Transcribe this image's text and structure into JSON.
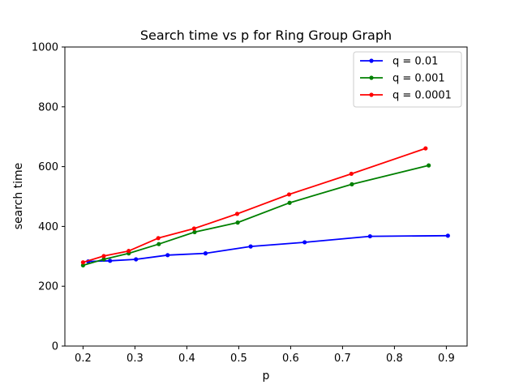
{
  "chart_data": {
    "type": "line",
    "title": "Search time vs p for Ring Group Graph",
    "xlabel": "p",
    "ylabel": "search time",
    "xlim": [
      0.165,
      0.94
    ],
    "ylim": [
      0,
      1000
    ],
    "xticks": [
      0.2,
      0.3,
      0.4,
      0.5,
      0.6,
      0.7,
      0.8,
      0.9
    ],
    "xtick_labels": [
      "0.2",
      "0.3",
      "0.4",
      "0.5",
      "0.6",
      "0.7",
      "0.8",
      "0.9"
    ],
    "yticks": [
      0,
      200,
      400,
      600,
      800,
      1000
    ],
    "ytick_labels": [
      "0",
      "200",
      "400",
      "600",
      "800",
      "1000"
    ],
    "grid": false,
    "legend_position": "top-right",
    "series": [
      {
        "name": "q = 0.01",
        "color": "#0000ff",
        "x": [
          0.21,
          0.252,
          0.302,
          0.363,
          0.436,
          0.523,
          0.627,
          0.753,
          0.903
        ],
        "y": [
          283,
          285,
          290,
          304,
          310,
          333,
          347,
          367,
          369
        ]
      },
      {
        "name": "q = 0.001",
        "color": "#008000",
        "x": [
          0.2,
          0.24,
          0.288,
          0.346,
          0.415,
          0.498,
          0.598,
          0.718,
          0.866
        ],
        "y": [
          270,
          290,
          310,
          341,
          381,
          413,
          479,
          541,
          604
        ]
      },
      {
        "name": "q = 0.0001",
        "color": "#ff0000",
        "x": [
          0.2,
          0.24,
          0.288,
          0.345,
          0.414,
          0.497,
          0.597,
          0.717,
          0.86
        ],
        "y": [
          280,
          301,
          318,
          361,
          393,
          442,
          507,
          576,
          661
        ]
      }
    ]
  }
}
